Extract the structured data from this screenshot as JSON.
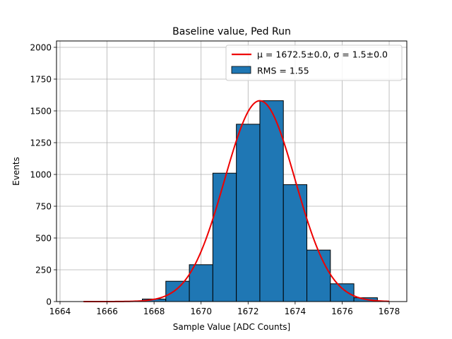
{
  "chart_data": {
    "type": "bar",
    "title": "Baseline value, Ped Run",
    "xlabel": "Sample Value [ADC Counts]",
    "ylabel": "Events",
    "xlim": [
      1663.85,
      1678.75
    ],
    "ylim": [
      0,
      2050
    ],
    "grid": true,
    "legend_position": "top-right",
    "xticks": [
      1664,
      1666,
      1668,
      1670,
      1672,
      1674,
      1676,
      1678
    ],
    "yticks": [
      0,
      250,
      500,
      750,
      1000,
      1250,
      1500,
      1750,
      2000
    ],
    "bins": [
      {
        "x0": 1667.5,
        "x1": 1668.5,
        "count": 20
      },
      {
        "x0": 1668.5,
        "x1": 1669.5,
        "count": 160
      },
      {
        "x0": 1669.5,
        "x1": 1670.5,
        "count": 290
      },
      {
        "x0": 1670.5,
        "x1": 1671.5,
        "count": 1010
      },
      {
        "x0": 1671.5,
        "x1": 1672.5,
        "count": 1395
      },
      {
        "x0": 1672.5,
        "x1": 1673.5,
        "count": 1580
      },
      {
        "x0": 1673.5,
        "x1": 1674.5,
        "count": 920
      },
      {
        "x0": 1674.5,
        "x1": 1675.5,
        "count": 405
      },
      {
        "x0": 1675.5,
        "x1": 1676.5,
        "count": 140
      },
      {
        "x0": 1676.5,
        "x1": 1677.5,
        "count": 30
      }
    ],
    "fit": {
      "mu": 1672.5,
      "sigma": 1.5,
      "amplitude": 1580,
      "x_range": [
        1665,
        1678
      ],
      "color": "#ee0000"
    },
    "bar_color": "#1f77b4",
    "legend": [
      {
        "kind": "line",
        "label": "μ = 1672.5±0.0, σ = 1.5±0.0",
        "color": "#ee0000"
      },
      {
        "kind": "patch",
        "label": "RMS = 1.55",
        "color": "#1f77b4"
      }
    ]
  }
}
